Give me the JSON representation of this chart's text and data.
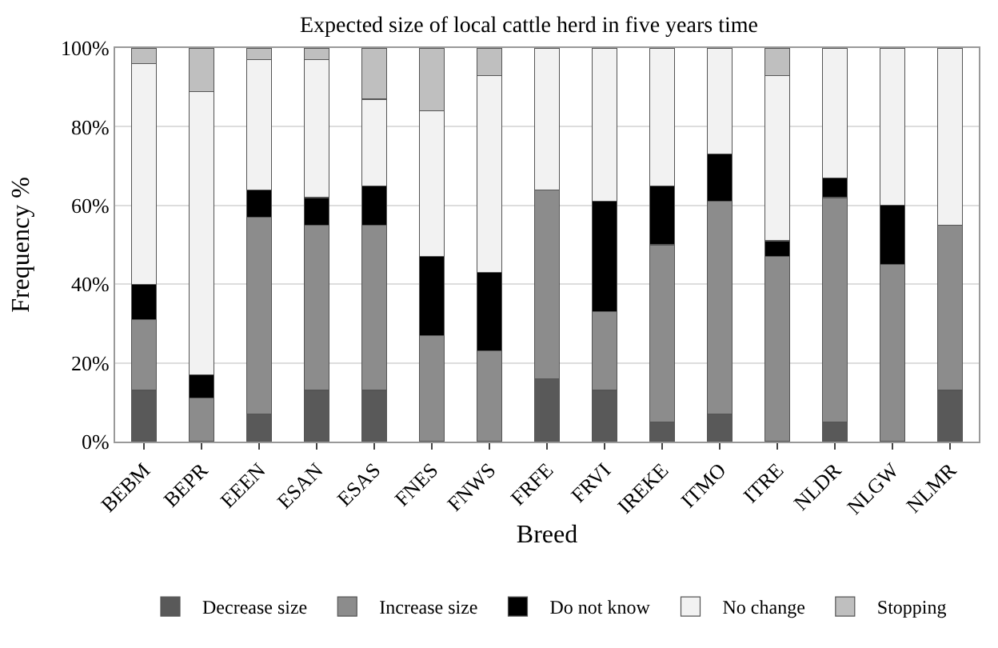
{
  "chart_data": {
    "type": "bar",
    "stacked": true,
    "title": "Expected size of local cattle herd in five years time",
    "xlabel": "Breed",
    "ylabel": "Frequency %",
    "categories": [
      "BEBM",
      "BEPR",
      "EEEN",
      "ESAN",
      "ESAS",
      "FNES",
      "FNWS",
      "FRFE",
      "FRVI",
      "IREKE",
      "ITMO",
      "ITRE",
      "NLDR",
      "NLGW",
      "NLMR"
    ],
    "series": [
      {
        "name": "Decrease size",
        "color": "#595959",
        "values": [
          13,
          0,
          7,
          13,
          13,
          0,
          0,
          16,
          13,
          5,
          7,
          0,
          5,
          0,
          13
        ]
      },
      {
        "name": "Increase size",
        "color": "#8c8c8c",
        "values": [
          18,
          11,
          50,
          42,
          42,
          27,
          23,
          48,
          20,
          45,
          54,
          47,
          57,
          45,
          42
        ]
      },
      {
        "name": "Do not know",
        "color": "#000000",
        "values": [
          9,
          6,
          7,
          7,
          10,
          20,
          20,
          0,
          28,
          15,
          12,
          4,
          5,
          15,
          0
        ]
      },
      {
        "name": "No change",
        "color": "#f2f2f2",
        "values": [
          56,
          72,
          33,
          35,
          22,
          37,
          50,
          36,
          39,
          35,
          27,
          42,
          33,
          40,
          45
        ]
      },
      {
        "name": "Stopping",
        "color": "#bfbfbf",
        "values": [
          4,
          11,
          3,
          3,
          13,
          16,
          7,
          0,
          0,
          0,
          0,
          7,
          0,
          0,
          0
        ]
      }
    ],
    "ylim": [
      0,
      100
    ],
    "yticks": [
      {
        "value": 0,
        "label": "0%"
      },
      {
        "value": 20,
        "label": "20%"
      },
      {
        "value": 40,
        "label": "40%"
      },
      {
        "value": 60,
        "label": "60%"
      },
      {
        "value": 80,
        "label": "80%"
      },
      {
        "value": 100,
        "label": "100%"
      }
    ],
    "grid": "y",
    "legend": "bottom"
  }
}
